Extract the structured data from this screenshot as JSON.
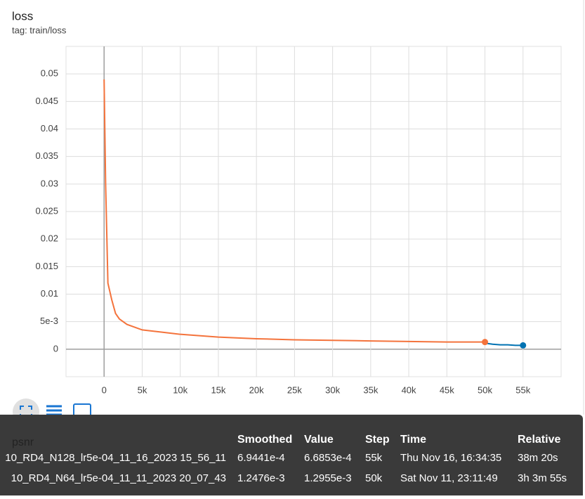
{
  "chart_data": {
    "type": "line",
    "title": "loss",
    "subtitle": "tag: train/loss",
    "xlim": [
      -5000,
      60000
    ],
    "xticks": [
      {
        "value": 0,
        "label": "0"
      },
      {
        "value": 5000,
        "label": "5k"
      },
      {
        "value": 10000,
        "label": "10k"
      },
      {
        "value": 15000,
        "label": "15k"
      },
      {
        "value": 20000,
        "label": "20k"
      },
      {
        "value": 25000,
        "label": "25k"
      },
      {
        "value": 30000,
        "label": "30k"
      },
      {
        "value": 35000,
        "label": "35k"
      },
      {
        "value": 40000,
        "label": "40k"
      },
      {
        "value": 45000,
        "label": "45k"
      },
      {
        "value": 50000,
        "label": "50k"
      },
      {
        "value": 55000,
        "label": "55k"
      }
    ],
    "ylim": [
      -0.005,
      0.055
    ],
    "yticks": [
      0,
      {
        "value": 0.005,
        "label": "5e-3"
      },
      0.01,
      0.015,
      0.02,
      0.025,
      0.03,
      0.035,
      0.04,
      0.045,
      0.05
    ],
    "grid": true,
    "series": [
      {
        "name": "10_RD4_N128_lr5e-04_11_16_2023 15_56_11",
        "color": "#0072b2",
        "x": [
          50000,
          51000,
          52000,
          53000,
          54000,
          55000
        ],
        "values": [
          0.0011,
          0.0009,
          0.0008,
          0.0008,
          0.0007,
          0.00069
        ]
      },
      {
        "name": "10_RD4_N64_lr5e-04_11_11_2023 20_07_43",
        "color": "#f4733c",
        "x": [
          0,
          200,
          500,
          1000,
          1500,
          2000,
          3000,
          5000,
          7500,
          10000,
          15000,
          20000,
          25000,
          30000,
          35000,
          40000,
          45000,
          50000
        ],
        "values": [
          0.049,
          0.03,
          0.012,
          0.009,
          0.0065,
          0.0055,
          0.0045,
          0.0035,
          0.0031,
          0.0027,
          0.0022,
          0.0019,
          0.0017,
          0.0016,
          0.0015,
          0.0014,
          0.0013,
          0.0013
        ]
      }
    ]
  },
  "next_chart": "psnr",
  "tooltip": {
    "headers": [
      "Smoothed",
      "Value",
      "Step",
      "Time",
      "Relative"
    ],
    "rows": [
      [
        "6.9441e-4",
        "6.6853e-4",
        "55k",
        "Thu Nov 16, 16:34:35",
        "38m 20s"
      ],
      [
        "1.2476e-3",
        "1.2955e-3",
        "50k",
        "Sat Nov 11, 23:11:49",
        "3h 3m 55s"
      ]
    ]
  }
}
